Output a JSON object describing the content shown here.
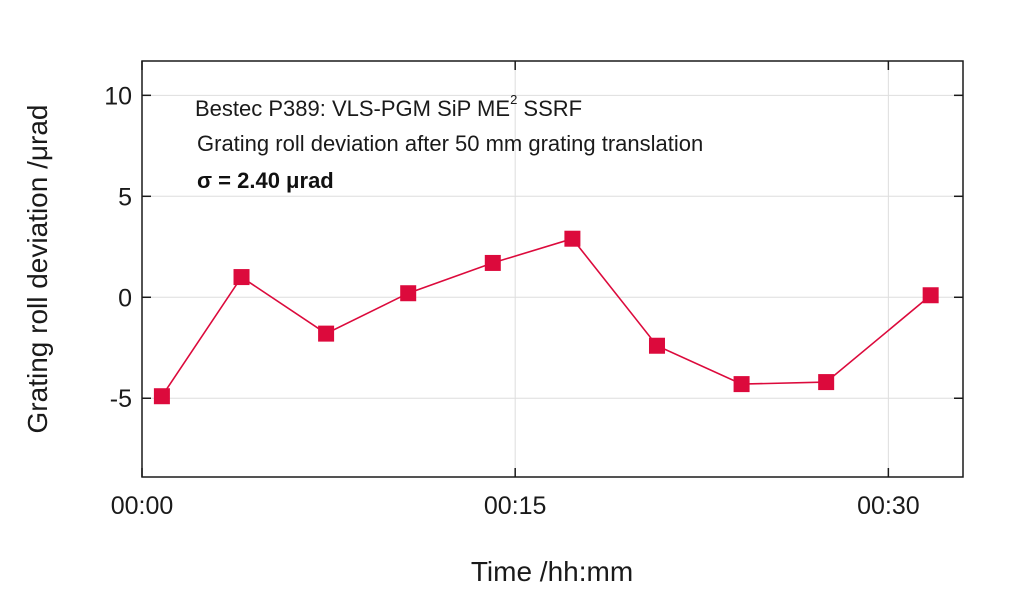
{
  "chart_data": {
    "type": "line",
    "annotation": {
      "line1_prefix": "Bestec P389: VLS-PGM SiP ME",
      "line1_sup": "2",
      "line1_suffix": " SSRF",
      "line2": "Grating roll deviation after 50 mm grating translation",
      "line3": "σ = 2.40 μrad"
    },
    "xlabel": "Time /hh:mm",
    "ylabel": "Grating roll deviation /μrad",
    "x_unit": "minutes",
    "xlim": [
      0,
      33
    ],
    "ylim": [
      -8.9,
      11.7
    ],
    "x_ticks": [
      {
        "value": 0,
        "label": "00:00"
      },
      {
        "value": 15,
        "label": "00:15"
      },
      {
        "value": 30,
        "label": "00:30"
      }
    ],
    "y_ticks": [
      {
        "value": 10,
        "label": "10"
      },
      {
        "value": 5,
        "label": "5"
      },
      {
        "value": 0,
        "label": "0"
      },
      {
        "value": -5,
        "label": "-5"
      }
    ],
    "grid": true,
    "series": [
      {
        "color": "#dc0a3c",
        "marker": "square",
        "points": [
          {
            "x": 0.8,
            "y": -4.9
          },
          {
            "x": 4.0,
            "y": 1.0
          },
          {
            "x": 7.4,
            "y": -1.8
          },
          {
            "x": 10.7,
            "y": 0.2
          },
          {
            "x": 14.1,
            "y": 1.7
          },
          {
            "x": 17.3,
            "y": 2.9
          },
          {
            "x": 20.7,
            "y": -2.4
          },
          {
            "x": 24.1,
            "y": -4.3
          },
          {
            "x": 27.5,
            "y": -4.2
          },
          {
            "x": 31.7,
            "y": 0.1
          }
        ]
      }
    ]
  }
}
